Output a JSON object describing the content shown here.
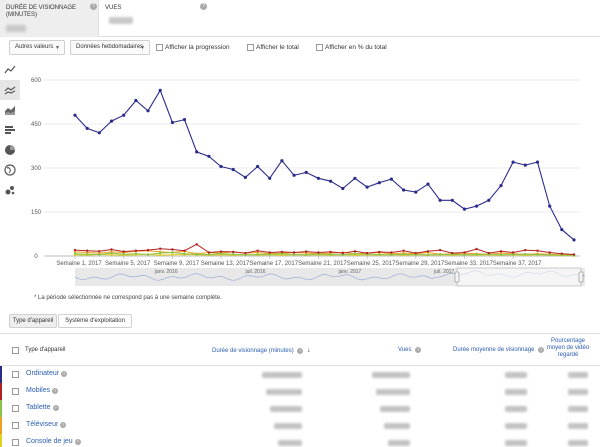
{
  "metric_tabs": [
    {
      "title": "DURÉE DE VISIONNAGE (MINUTES)",
      "active": true
    },
    {
      "title": "VUES",
      "active": false
    }
  ],
  "controls": {
    "dropdown1": "Autres valeurs",
    "dropdown2": "Données hebdomadaires",
    "checkbox1": "Afficher la progression",
    "checkbox2": "Afficher le total",
    "checkbox3": "Afficher en % du total"
  },
  "chart_icons": [
    "line-chart-icon",
    "multiline-chart-icon",
    "stacked-area-icon",
    "bar-chart-icon",
    "pie-chart-icon",
    "globe-map-icon",
    "bubble-chart-icon"
  ],
  "chart_data": {
    "type": "line",
    "yticks": [
      "0",
      "150",
      "300",
      "450",
      "600"
    ],
    "ylim": [
      0,
      600
    ],
    "xticks": [
      "Semaine 1, 2017",
      "Semaine 5, 2017",
      "Semaine 9, 2017",
      "Semaine 13, 2017",
      "Semaine 17, 2017",
      "Semaine 21, 2017",
      "Semaine 25, 2017",
      "Semaine 29, 2017",
      "Semaine 33, 2017",
      "Semaine 37, 2017"
    ],
    "x": [
      1,
      2,
      3,
      4,
      5,
      6,
      7,
      8,
      9,
      10,
      11,
      12,
      13,
      14,
      15,
      16,
      17,
      18,
      19,
      20,
      21,
      22,
      23,
      24,
      25,
      26,
      27,
      28,
      29,
      30,
      31,
      32,
      33,
      34,
      35,
      36,
      37,
      38,
      39,
      40,
      41,
      42
    ],
    "series": [
      {
        "name": "Ordinateur",
        "color": "#2b2b8c",
        "values": [
          480,
          435,
          420,
          460,
          480,
          530,
          495,
          565,
          455,
          465,
          355,
          340,
          305,
          295,
          268,
          305,
          265,
          325,
          275,
          285,
          265,
          255,
          230,
          265,
          235,
          250,
          262,
          225,
          218,
          245,
          190,
          190,
          160,
          170,
          190,
          240,
          320,
          310,
          320,
          170,
          90,
          55
        ]
      },
      {
        "name": "Mobiles",
        "color": "#b22222",
        "values": [
          20,
          18,
          16,
          22,
          15,
          18,
          20,
          25,
          22,
          18,
          40,
          12,
          15,
          14,
          10,
          18,
          12,
          14,
          12,
          15,
          12,
          14,
          10,
          16,
          10,
          14,
          12,
          18,
          10,
          16,
          20,
          10,
          12,
          24,
          10,
          16,
          12,
          20,
          18,
          12,
          8,
          5
        ]
      },
      {
        "name": "Tablette",
        "color": "#8bc34a",
        "values": [
          8,
          6,
          5,
          10,
          6,
          8,
          5,
          10,
          12,
          8,
          6,
          5,
          8,
          6,
          4,
          5,
          6,
          8,
          5,
          4,
          6,
          5,
          4,
          8,
          6,
          5,
          4,
          6,
          5,
          4,
          5,
          6,
          4,
          5,
          6,
          4,
          5,
          6,
          5,
          4,
          3,
          2
        ]
      },
      {
        "name": "Téléviseur",
        "color": "#f0a020",
        "values": [
          14,
          12,
          10,
          14,
          12,
          16,
          18,
          14,
          12,
          16,
          8,
          12,
          10,
          14,
          10,
          12,
          8,
          10,
          12,
          10,
          8,
          10,
          12,
          8,
          10,
          12,
          8,
          10,
          8,
          12,
          6,
          8,
          10,
          8,
          6,
          10,
          8,
          6,
          8,
          6,
          4,
          3
        ]
      },
      {
        "name": "Console de jeu",
        "color": "#e0d020",
        "values": [
          4,
          3,
          5,
          4,
          3,
          4,
          5,
          3,
          4,
          5,
          4,
          3,
          4,
          3,
          4,
          3,
          4,
          3,
          4,
          3,
          4,
          3,
          4,
          3,
          4,
          3,
          4,
          3,
          4,
          3,
          4,
          3,
          4,
          3,
          4,
          3,
          4,
          3,
          4,
          3,
          2,
          1
        ]
      }
    ],
    "navigator_labels": [
      "janv. 2016",
      "juil. 2016",
      "janv. 2017",
      "juil. 2017"
    ]
  },
  "footnote": "* La période sélectionnée ne correspond pas à une semaine complète.",
  "dimension_tabs": [
    "Type d'appareil",
    "Système d'exploitation"
  ],
  "table": {
    "headers": {
      "device": "Type d'appareil",
      "watch_time": "Durée de visionnage (minutes)",
      "views": "Vues",
      "avg_duration": "Durée moyenne de visionnage",
      "pct_line1": "Pourcentage",
      "pct_line2": "moyen de vidéo",
      "pct_line3": "regardé"
    },
    "rows": [
      {
        "name": "Ordinateur",
        "color": "#2b2b8c"
      },
      {
        "name": "Mobiles",
        "color": "#b22222"
      },
      {
        "name": "Tablette",
        "color": "#8bc34a"
      },
      {
        "name": "Téléviseur",
        "color": "#f0a020"
      },
      {
        "name": "Console de jeu",
        "color": "#e0d020"
      }
    ]
  }
}
